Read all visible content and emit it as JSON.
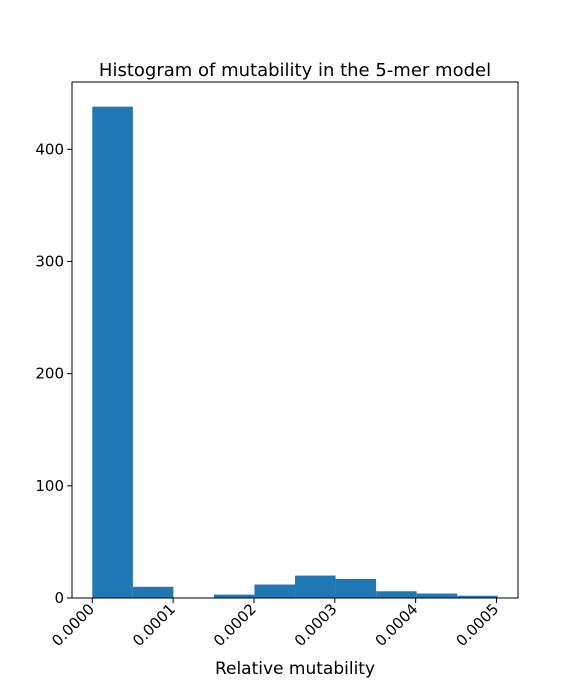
{
  "chart_data": {
    "type": "bar",
    "title": "Histogram of mutability in the 5-mer model",
    "xlabel": "Relative mutability",
    "ylabel": "",
    "bins": [
      {
        "x0": 0.0,
        "x1": 5.02e-05,
        "count": 438
      },
      {
        "x0": 5.02e-05,
        "x1": 0.0001003,
        "count": 10
      },
      {
        "x0": 0.0001003,
        "x1": 0.0001505,
        "count": 0
      },
      {
        "x0": 0.0001505,
        "x1": 0.0002006,
        "count": 3
      },
      {
        "x0": 0.0002006,
        "x1": 0.0002508,
        "count": 12
      },
      {
        "x0": 0.0002508,
        "x1": 0.0003009,
        "count": 20
      },
      {
        "x0": 0.0003009,
        "x1": 0.0003511,
        "count": 17
      },
      {
        "x0": 0.0003511,
        "x1": 0.0004012,
        "count": 6
      },
      {
        "x0": 0.0004012,
        "x1": 0.0004514,
        "count": 4
      },
      {
        "x0": 0.0004514,
        "x1": 0.0005015,
        "count": 2
      }
    ],
    "xlim": [
      -2.51e-05,
      0.0005266
    ],
    "ylim": [
      0,
      460
    ],
    "xticks": [
      0.0,
      0.0001,
      0.0002,
      0.0003,
      0.0004,
      0.0005
    ],
    "xtick_labels": [
      "0.0000",
      "0.0001",
      "0.0002",
      "0.0003",
      "0.0004",
      "0.0005"
    ],
    "yticks": [
      0,
      100,
      200,
      300,
      400
    ],
    "ytick_labels": [
      "0",
      "100",
      "200",
      "300",
      "400"
    ],
    "grid": false,
    "bar_color": "#1f77b4"
  }
}
